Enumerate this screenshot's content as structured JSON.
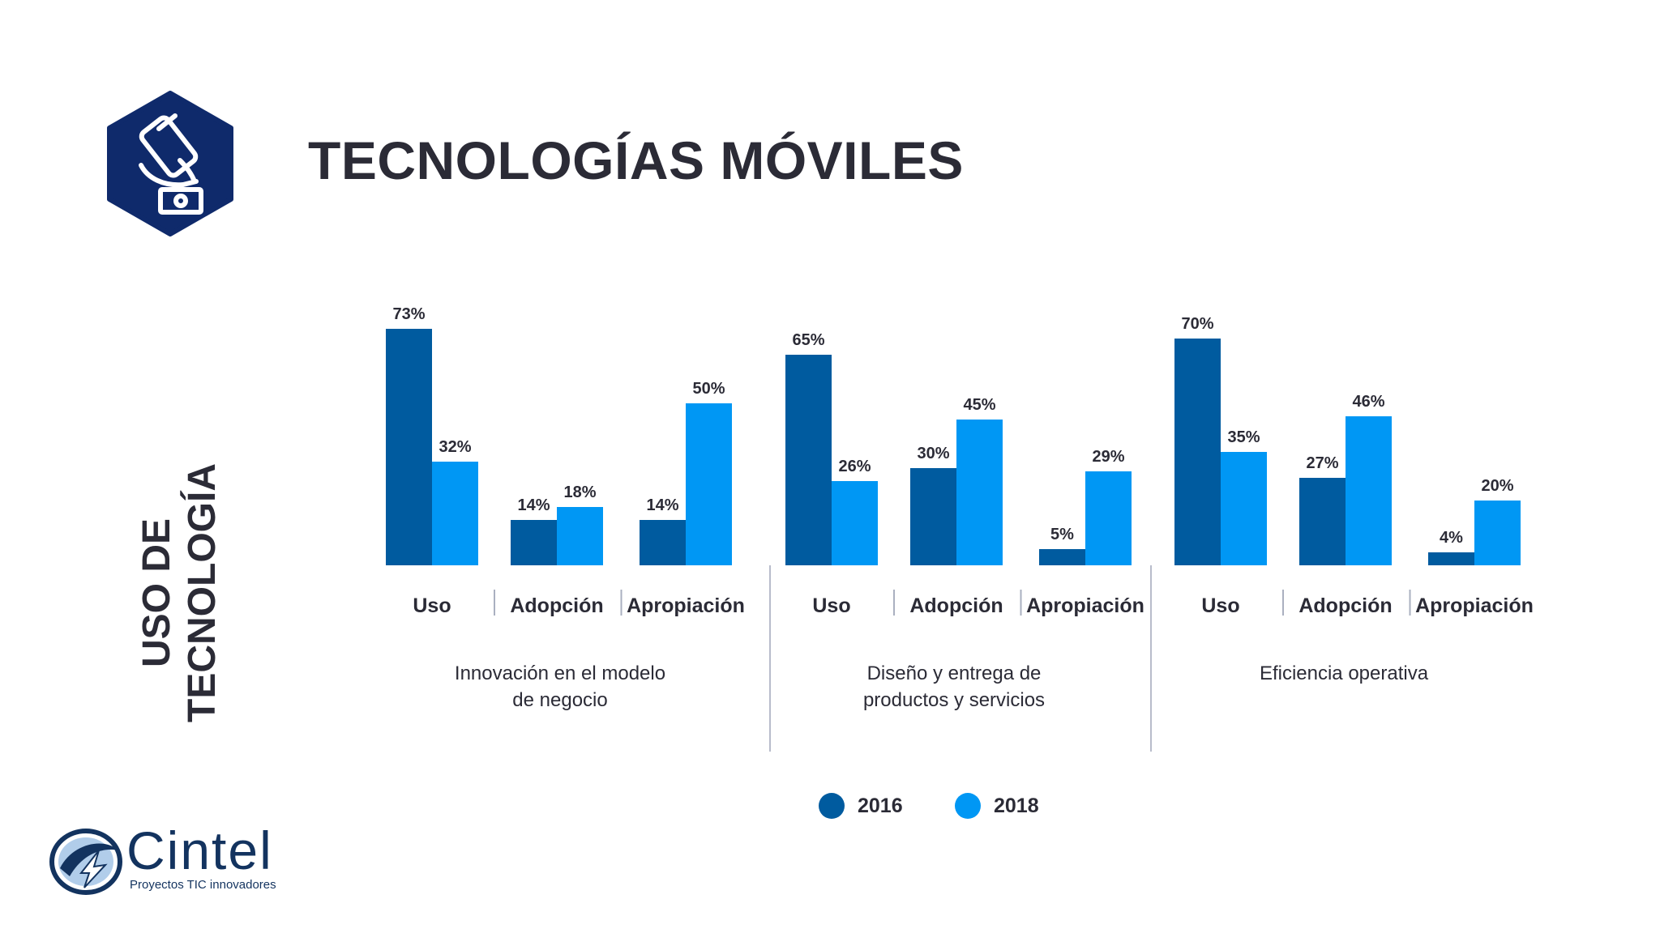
{
  "header": {
    "title": "TECNOLOGÍAS MÓVILES",
    "icon": "mobile-payment-icon"
  },
  "side_label": {
    "line1": "USO DE",
    "line2": "TECNOLOGÍA"
  },
  "logo": {
    "name": "Cintel",
    "tagline": "Proyectos TIC innovadores"
  },
  "colors": {
    "series_2016": "#005b9f",
    "series_2018": "#0097f4",
    "text": "#2b2b36",
    "badge": "#0f2a6b"
  },
  "chart_data": {
    "type": "bar",
    "groups": [
      {
        "label": "Innovación en el modelo de negocio",
        "lines": [
          "Innovación en el modelo",
          "de negocio"
        ]
      },
      {
        "label": "Diseño y entrega de productos y servicios",
        "lines": [
          "Diseño y entrega de",
          "productos y servicios"
        ]
      },
      {
        "label": "Eficiencia operativa",
        "lines": [
          "Eficiencia operativa"
        ]
      }
    ],
    "categories": [
      "Uso",
      "Adopción",
      "Apropiación"
    ],
    "series": [
      {
        "name": "2016",
        "values": [
          [
            73,
            14,
            14
          ],
          [
            65,
            30,
            5
          ],
          [
            70,
            27,
            4
          ]
        ]
      },
      {
        "name": "2018",
        "values": [
          [
            32,
            18,
            50
          ],
          [
            26,
            45,
            29
          ],
          [
            35,
            46,
            20
          ]
        ]
      }
    ],
    "value_suffix": "%",
    "ylim": [
      0,
      100
    ],
    "grid": false,
    "legend": "bottom-center"
  }
}
